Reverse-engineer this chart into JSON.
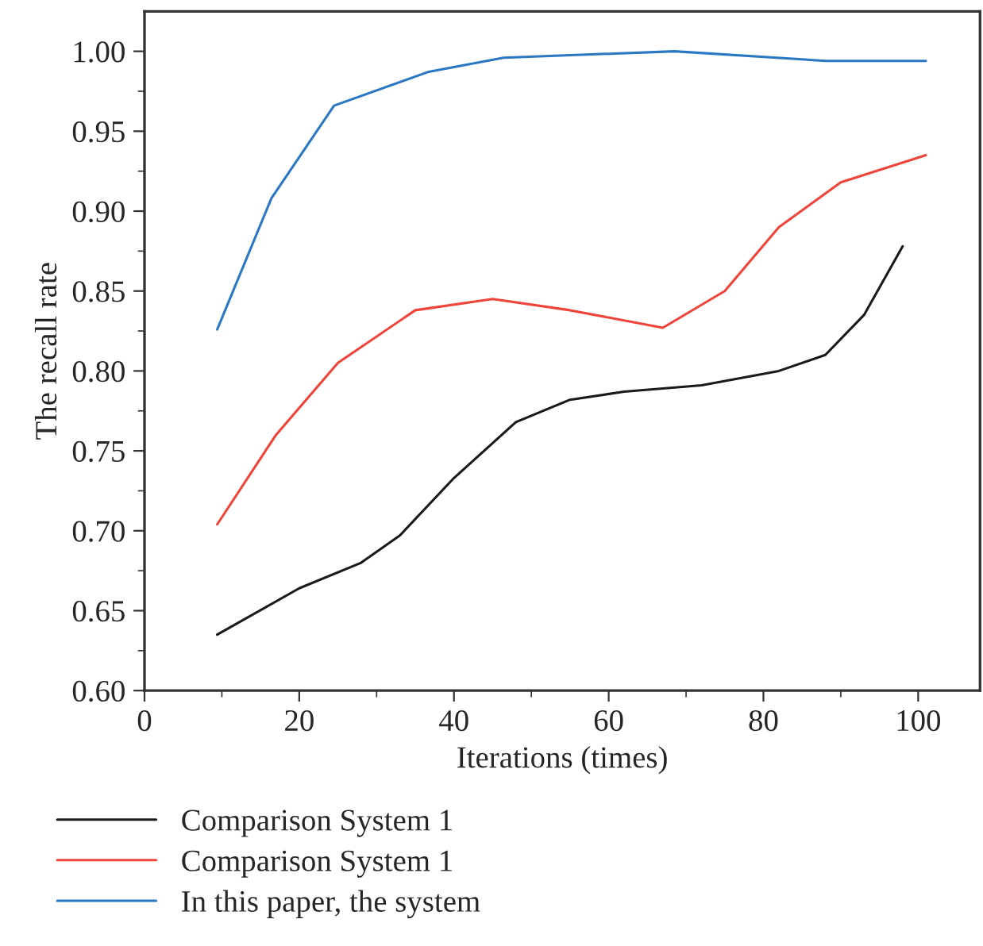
{
  "chart_data": {
    "type": "line",
    "xlabel": "Iterations (times)",
    "ylabel": "The recall rate",
    "xlim": [
      0,
      108
    ],
    "ylim": [
      0.6,
      1.025
    ],
    "xticks": [
      0,
      {
        "value": 10,
        "label": null
      },
      20,
      {
        "value": 30,
        "label": null
      },
      40,
      {
        "value": 50,
        "label": null
      },
      60,
      {
        "value": 70,
        "label": null
      },
      80,
      {
        "value": 90,
        "label": null
      },
      100
    ],
    "yticks": [
      {
        "value": 0.6,
        "label": "0.60"
      },
      {
        "value": 0.625,
        "label": null
      },
      {
        "value": 0.65,
        "label": "0.65"
      },
      {
        "value": 0.675,
        "label": null
      },
      {
        "value": 0.7,
        "label": "0.70"
      },
      {
        "value": 0.725,
        "label": null
      },
      {
        "value": 0.75,
        "label": "0.75"
      },
      {
        "value": 0.775,
        "label": null
      },
      {
        "value": 0.8,
        "label": "0.80"
      },
      {
        "value": 0.825,
        "label": null
      },
      {
        "value": 0.85,
        "label": "0.85"
      },
      {
        "value": 0.875,
        "label": null
      },
      {
        "value": 0.9,
        "label": "0.90"
      },
      {
        "value": 0.925,
        "label": null
      },
      {
        "value": 0.95,
        "label": "0.95"
      },
      {
        "value": 0.975,
        "label": null
      },
      {
        "value": 1.0,
        "label": "1.00"
      }
    ],
    "grid": false,
    "legend": "bottom",
    "marker": "none",
    "line_style": "solid",
    "series": [
      {
        "name": "Comparison System 1",
        "color": "#1a1a1a",
        "x": [
          9.4,
          20,
          28,
          33,
          40,
          48,
          55,
          62,
          72,
          82,
          88,
          93,
          98
        ],
        "values": [
          0.635,
          0.664,
          0.68,
          0.697,
          0.733,
          0.768,
          0.782,
          0.787,
          0.791,
          0.8,
          0.81,
          0.835,
          0.878
        ]
      },
      {
        "name": "Comparison System 1",
        "color": "#f0443a",
        "x": [
          9.4,
          17,
          25,
          35,
          45,
          55,
          67,
          75,
          82,
          90,
          101
        ],
        "values": [
          0.704,
          0.76,
          0.805,
          0.838,
          0.845,
          0.838,
          0.827,
          0.85,
          0.89,
          0.918,
          0.935
        ]
      },
      {
        "name": "In this paper, the system",
        "color": "#2a78c4",
        "x": [
          9.4,
          16.4,
          24.5,
          36.6,
          46.4,
          68.5,
          88.1,
          101
        ],
        "values": [
          0.826,
          0.908,
          0.966,
          0.987,
          0.996,
          1.0,
          0.994,
          0.994
        ]
      }
    ]
  }
}
